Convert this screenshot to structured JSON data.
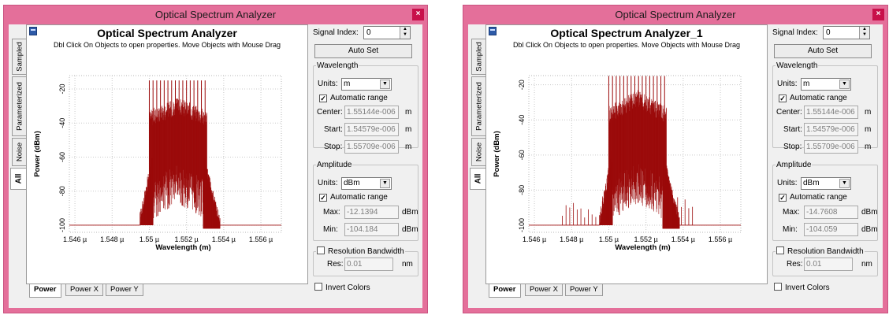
{
  "windows": [
    {
      "title": "Optical Spectrum Analyzer",
      "close_label": "×",
      "plot": {
        "title": "Optical Spectrum Analyzer",
        "hint": "Dbl Click On Objects to open properties.  Move Objects with Mouse Drag"
      },
      "side_tabs": [
        "Sampled",
        "Parameterized",
        "Noise",
        "All"
      ],
      "bottom_tabs": [
        "Power",
        "Power X",
        "Power Y"
      ],
      "controls": {
        "signal_index_label": "Signal Index:",
        "signal_index_value": "0",
        "auto_set_label": "Auto Set",
        "wavelength": {
          "legend": "Wavelength",
          "units_label": "Units:",
          "units_value": "m",
          "auto_range_label": "Automatic range",
          "center_label": "Center:",
          "center_value": "1.55144e-006",
          "start_label": "Start:",
          "start_value": "1.54579e-006",
          "stop_label": "Stop:",
          "stop_value": "1.55709e-006",
          "unit": "m"
        },
        "amplitude": {
          "legend": "Amplitude",
          "units_label": "Units:",
          "units_value": "dBm",
          "auto_range_label": "Automatic range",
          "max_label": "Max:",
          "max_value": "-12.1394",
          "min_label": "Min:",
          "min_value": "-104.184",
          "unit": "dBm"
        },
        "resolution": {
          "legend": "Resolution Bandwidth",
          "res_label": "Res:",
          "res_value": "0.01",
          "unit": "nm"
        },
        "invert_label": "Invert Colors"
      }
    },
    {
      "title": "Optical Spectrum Analyzer",
      "close_label": "×",
      "plot": {
        "title": "Optical Spectrum Analyzer_1",
        "hint": "Dbl Click On Objects to open properties.  Move Objects with Mouse Drag"
      },
      "side_tabs": [
        "Sampled",
        "Parameterized",
        "Noise",
        "All"
      ],
      "bottom_tabs": [
        "Power",
        "Power X",
        "Power Y"
      ],
      "controls": {
        "signal_index_label": "Signal Index:",
        "signal_index_value": "0",
        "auto_set_label": "Auto Set",
        "wavelength": {
          "legend": "Wavelength",
          "units_label": "Units:",
          "units_value": "m",
          "auto_range_label": "Automatic range",
          "center_label": "Center:",
          "center_value": "1.55144e-006",
          "start_label": "Start:",
          "start_value": "1.54579e-006",
          "stop_label": "Stop:",
          "stop_value": "1.55709e-006",
          "unit": "m"
        },
        "amplitude": {
          "legend": "Amplitude",
          "units_label": "Units:",
          "units_value": "dBm",
          "auto_range_label": "Automatic range",
          "max_label": "Max:",
          "max_value": "-14.7608",
          "min_label": "Min:",
          "min_value": "-104.059",
          "unit": "dBm"
        },
        "resolution": {
          "legend": "Resolution Bandwidth",
          "res_label": "Res:",
          "res_value": "0.01",
          "unit": "nm"
        },
        "invert_label": "Invert Colors"
      }
    }
  ],
  "chart_data": [
    {
      "type": "line",
      "title": "Optical Spectrum Analyzer",
      "xlabel": "Wavelength (m)",
      "ylabel": "Power (dBm)",
      "xlim": [
        1.5457,
        1.5571
      ],
      "ylim": [
        -104.184,
        -12.1394
      ],
      "x_ticks": [
        "1.546 µ",
        "1.548 µ",
        "1.55 µ",
        "1.552 µ",
        "1.554 µ",
        "1.556 µ"
      ],
      "x_tick_values": [
        1.546,
        1.548,
        1.55,
        1.552,
        1.554,
        1.556
      ],
      "y_ticks": [
        "-20",
        "-40",
        "-60",
        "-80",
        "-100"
      ],
      "y_tick_values": [
        -20,
        -40,
        -60,
        -80,
        -100
      ],
      "grid": true,
      "color": "#9b0a0a",
      "noise_floor": -100,
      "comb": {
        "start": 1.55,
        "end": 1.5531,
        "spacing": 0.0002,
        "peak": -15,
        "plateau_top": -42,
        "plateau_bottom": -60,
        "center_top": -35,
        "edge_min": -100,
        "left_shoulder": [
          1.5495,
          1.5502
        ],
        "right_shoulder": [
          1.5529,
          1.5538
        ]
      },
      "sidebands": []
    },
    {
      "type": "line",
      "title": "Optical Spectrum Analyzer_1",
      "xlabel": "Wavelength (m)",
      "ylabel": "Power (dBm)",
      "xlim": [
        1.5457,
        1.5571
      ],
      "ylim": [
        -104.059,
        -14.7608
      ],
      "x_ticks": [
        "1.546 µ",
        "1.548 µ",
        "1.55 µ",
        "1.552 µ",
        "1.554 µ",
        "1.556 µ"
      ],
      "x_tick_values": [
        1.546,
        1.548,
        1.55,
        1.552,
        1.554,
        1.556
      ],
      "y_ticks": [
        "-20",
        "-40",
        "-60",
        "-80",
        "-100"
      ],
      "y_tick_values": [
        -20,
        -40,
        -60,
        -80,
        -100
      ],
      "grid": true,
      "color": "#9b0a0a",
      "noise_floor": -100,
      "comb": {
        "start": 1.55,
        "end": 1.5531,
        "spacing": 0.0002,
        "peak": -15,
        "plateau_top": -42,
        "plateau_bottom": -60,
        "center_top": -33,
        "edge_min": -100,
        "left_shoulder": [
          1.5495,
          1.5502
        ],
        "right_shoulder": [
          1.5529,
          1.5538
        ]
      },
      "sidebands": [
        {
          "start": 1.5475,
          "end": 1.5496,
          "spacing": 0.0002,
          "level": -93
        },
        {
          "start": 1.5535,
          "end": 1.5545,
          "spacing": 0.0002,
          "level": -90
        }
      ]
    }
  ]
}
